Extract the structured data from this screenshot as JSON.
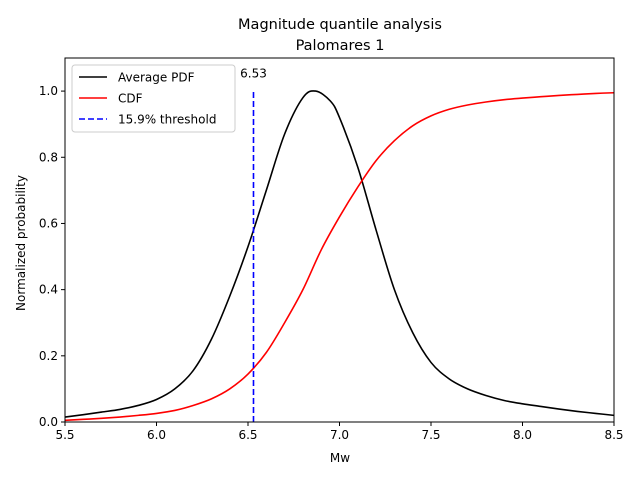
{
  "chart_data": {
    "type": "line",
    "title": "Magnitude quantile analysis",
    "subtitle": "Palomares 1",
    "xlabel": "Mw",
    "ylabel": "Normalized probability",
    "xlim": [
      5.5,
      8.5
    ],
    "ylim": [
      0,
      1.1
    ],
    "x_ticks": [
      "5.5",
      "6.0",
      "6.5",
      "7.0",
      "7.5",
      "8.0",
      "8.5"
    ],
    "y_ticks": [
      "0.0",
      "0.2",
      "0.4",
      "0.6",
      "0.8",
      "1.0"
    ],
    "grid": false,
    "legend_position": "upper-left",
    "series": [
      {
        "name": "Average PDF",
        "color": "#000000",
        "style": "solid",
        "x": [
          5.5,
          5.6,
          5.7,
          5.8,
          5.9,
          6.0,
          6.1,
          6.2,
          6.3,
          6.4,
          6.5,
          6.6,
          6.7,
          6.8,
          6.87,
          6.95,
          7.0,
          7.1,
          7.2,
          7.3,
          7.4,
          7.5,
          7.6,
          7.7,
          7.8,
          7.9,
          8.0,
          8.1,
          8.2,
          8.3,
          8.4,
          8.5
        ],
        "y": [
          0.015,
          0.022,
          0.03,
          0.038,
          0.05,
          0.068,
          0.1,
          0.155,
          0.25,
          0.38,
          0.53,
          0.7,
          0.87,
          0.98,
          1.0,
          0.97,
          0.92,
          0.77,
          0.58,
          0.4,
          0.27,
          0.18,
          0.13,
          0.1,
          0.08,
          0.065,
          0.055,
          0.047,
          0.039,
          0.032,
          0.026,
          0.02
        ]
      },
      {
        "name": "CDF",
        "color": "#ff0000",
        "style": "solid",
        "x": [
          5.5,
          5.6,
          5.7,
          5.8,
          5.9,
          6.0,
          6.1,
          6.2,
          6.3,
          6.4,
          6.5,
          6.6,
          6.7,
          6.8,
          6.9,
          7.0,
          7.1,
          7.2,
          7.3,
          7.4,
          7.5,
          7.6,
          7.7,
          7.8,
          7.9,
          8.0,
          8.1,
          8.2,
          8.3,
          8.4,
          8.5
        ],
        "y": [
          0.005,
          0.008,
          0.011,
          0.015,
          0.02,
          0.026,
          0.035,
          0.05,
          0.07,
          0.1,
          0.145,
          0.21,
          0.3,
          0.4,
          0.52,
          0.62,
          0.71,
          0.79,
          0.85,
          0.895,
          0.925,
          0.945,
          0.958,
          0.967,
          0.974,
          0.979,
          0.983,
          0.987,
          0.99,
          0.993,
          0.995
        ]
      },
      {
        "name": "15.9% threshold",
        "color": "#0000ff",
        "style": "dashed",
        "x": [
          6.53,
          6.53
        ],
        "y": [
          0,
          1.0
        ]
      }
    ],
    "annotations": [
      {
        "text": "6.53",
        "x": 6.53,
        "y": 1.02
      }
    ]
  }
}
